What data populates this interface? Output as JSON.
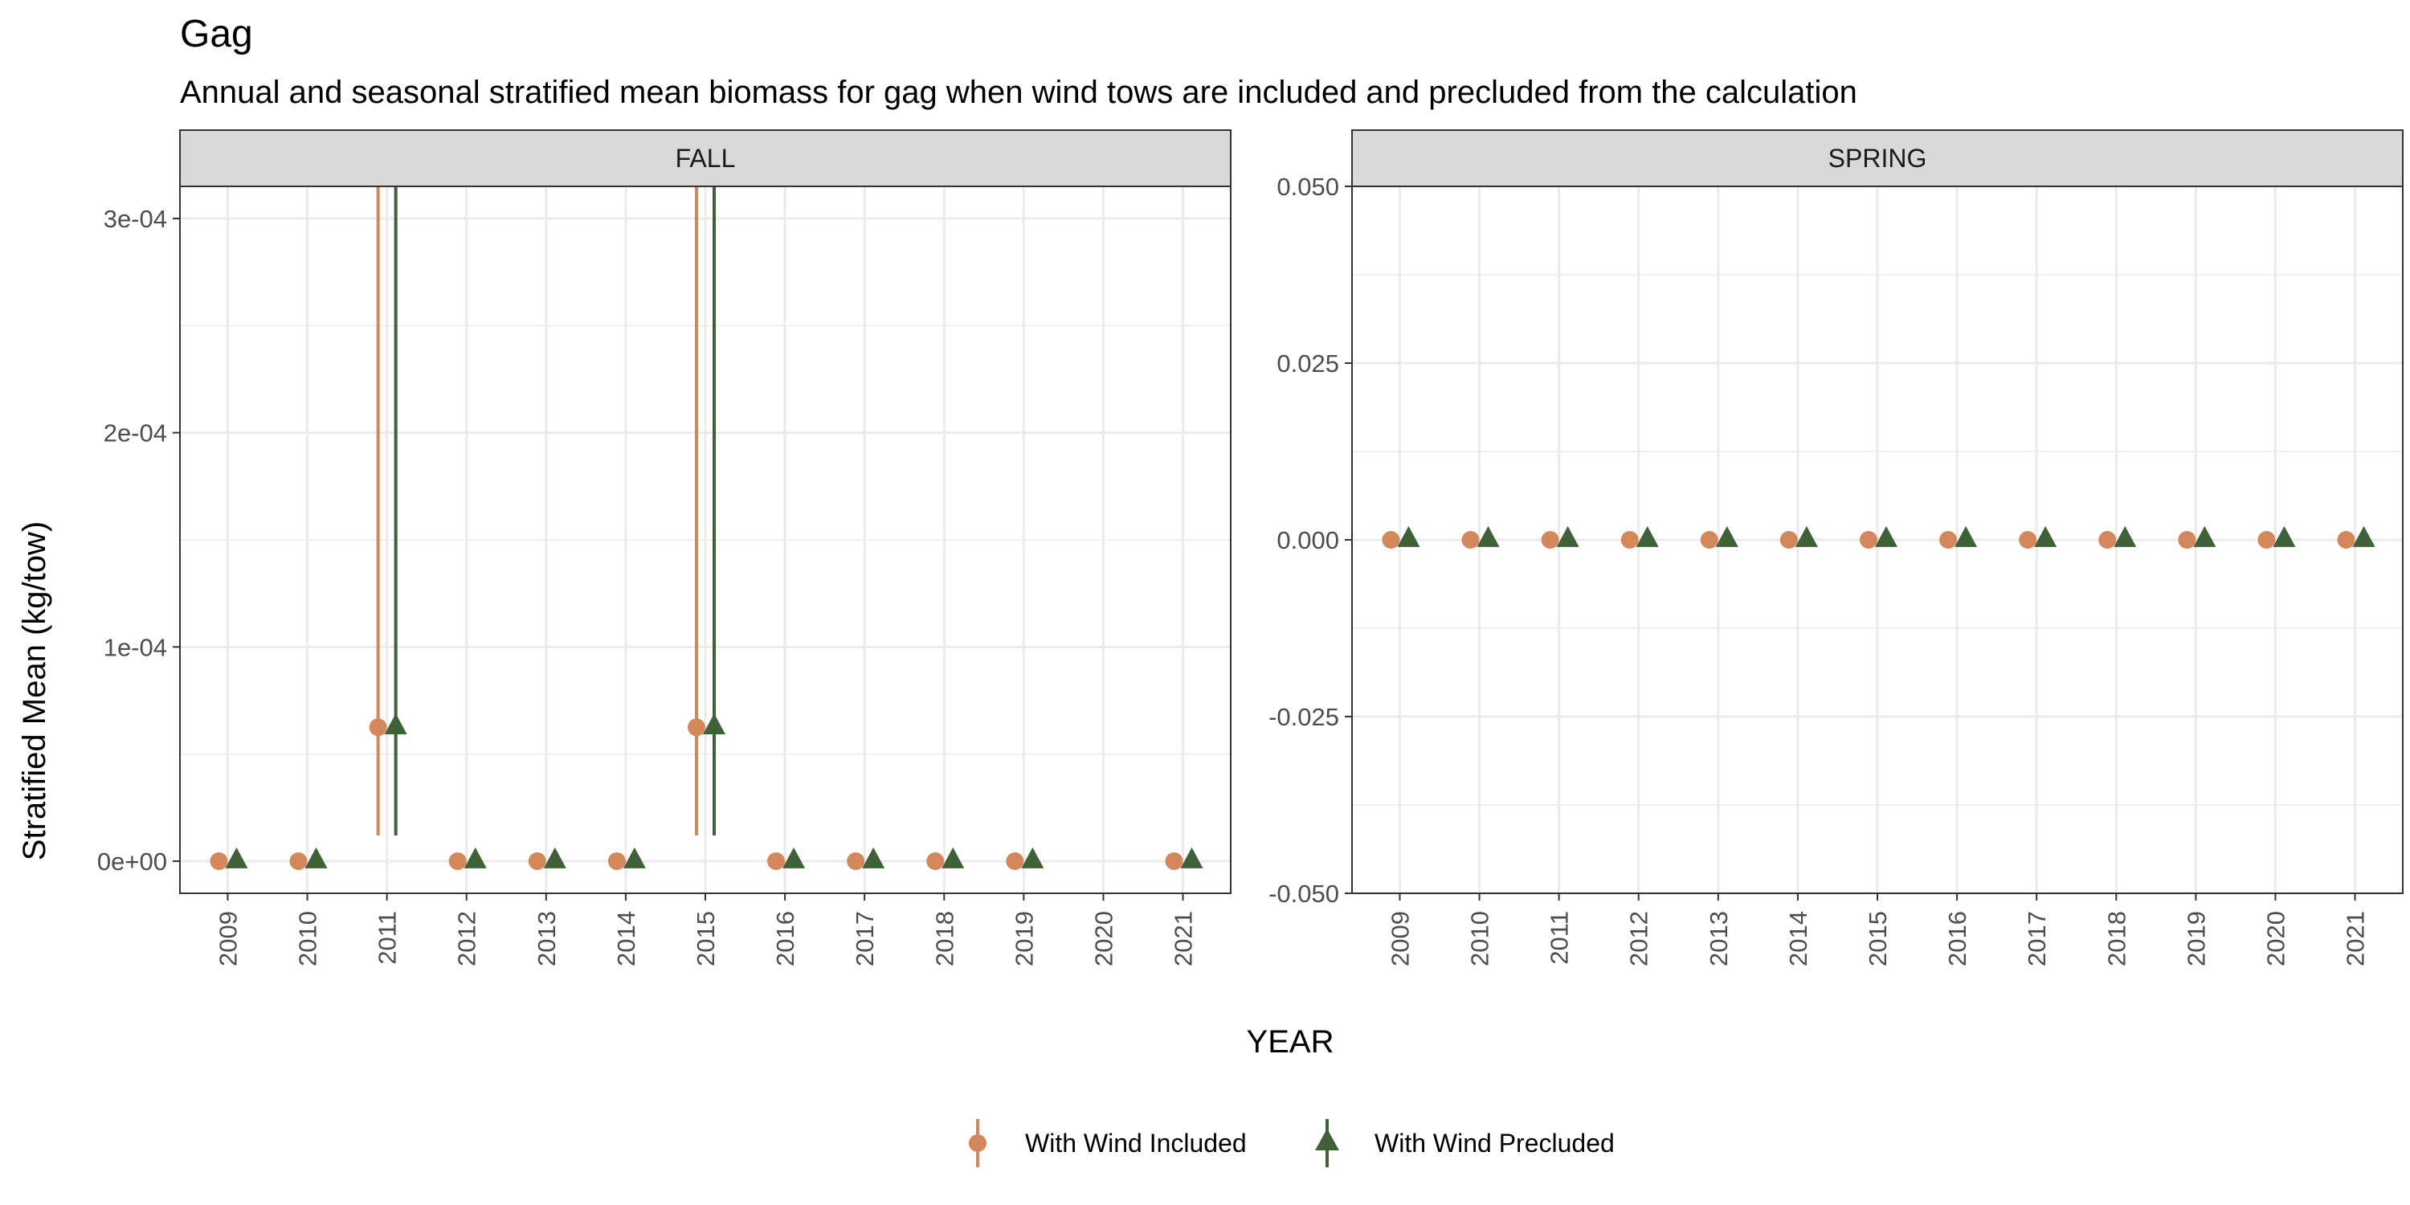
{
  "title": "Gag",
  "subtitle": "Annual and seasonal stratified mean biomass for gag when wind tows are included and precluded from the calculation",
  "colors": {
    "included": "#D4875A",
    "precluded": "#3E6138",
    "grid": "#EBEBEB",
    "strip_fill": "#D9D9D9",
    "panel_border": "#333333"
  },
  "chart_data": {
    "type": "scatter",
    "xlabel": "YEAR",
    "ylabel": "Stratified Mean (kg/tow)",
    "x": [
      "2009",
      "2010",
      "2011",
      "2012",
      "2013",
      "2014",
      "2015",
      "2016",
      "2017",
      "2018",
      "2019",
      "2020",
      "2021"
    ],
    "legend": {
      "position": "bottom",
      "entries": [
        "With Wind Included",
        "With Wind Precluded"
      ]
    },
    "grid": true,
    "panels": [
      {
        "name": "FALL",
        "ylim": [
          -1.5e-05,
          0.000315
        ],
        "y_ticks": [
          0,
          0.0001,
          0.0002,
          0.0003
        ],
        "y_tick_labels": [
          "0e+00",
          "1e-04",
          "2e-04",
          "3e-04"
        ],
        "series": [
          {
            "name": "With Wind Included",
            "marker": "circle",
            "points": [
              {
                "x": "2009",
                "y": 0
              },
              {
                "x": "2010",
                "y": 0
              },
              {
                "x": "2011",
                "y": 6.25e-05,
                "ymin": 1.2e-05,
                "ymax": 0.000317
              },
              {
                "x": "2012",
                "y": 0
              },
              {
                "x": "2013",
                "y": 0
              },
              {
                "x": "2014",
                "y": 0
              },
              {
                "x": "2015",
                "y": 6.25e-05,
                "ymin": 1.2e-05,
                "ymax": 0.000315
              },
              {
                "x": "2016",
                "y": 0
              },
              {
                "x": "2017",
                "y": 0
              },
              {
                "x": "2018",
                "y": 0
              },
              {
                "x": "2019",
                "y": 0
              },
              {
                "x": "2021",
                "y": 0
              }
            ]
          },
          {
            "name": "With Wind Precluded",
            "marker": "triangle",
            "points": [
              {
                "x": "2009",
                "y": 0
              },
              {
                "x": "2010",
                "y": 0
              },
              {
                "x": "2011",
                "y": 6.25e-05,
                "ymin": 1.2e-05,
                "ymax": 0.000317
              },
              {
                "x": "2012",
                "y": 0
              },
              {
                "x": "2013",
                "y": 0
              },
              {
                "x": "2014",
                "y": 0
              },
              {
                "x": "2015",
                "y": 6.25e-05,
                "ymin": 1.2e-05,
                "ymax": 0.000315
              },
              {
                "x": "2016",
                "y": 0
              },
              {
                "x": "2017",
                "y": 0
              },
              {
                "x": "2018",
                "y": 0
              },
              {
                "x": "2019",
                "y": 0
              },
              {
                "x": "2021",
                "y": 0
              }
            ]
          }
        ]
      },
      {
        "name": "SPRING",
        "ylim": [
          -0.05,
          0.05
        ],
        "y_ticks": [
          -0.05,
          -0.025,
          0,
          0.025,
          0.05
        ],
        "y_tick_labels": [
          "-0.050",
          "-0.025",
          "0.000",
          "0.025",
          "0.050"
        ],
        "series": [
          {
            "name": "With Wind Included",
            "marker": "circle",
            "points": [
              {
                "x": "2009",
                "y": 0
              },
              {
                "x": "2010",
                "y": 0
              },
              {
                "x": "2011",
                "y": 0
              },
              {
                "x": "2012",
                "y": 0
              },
              {
                "x": "2013",
                "y": 0
              },
              {
                "x": "2014",
                "y": 0
              },
              {
                "x": "2015",
                "y": 0
              },
              {
                "x": "2016",
                "y": 0
              },
              {
                "x": "2017",
                "y": 0
              },
              {
                "x": "2018",
                "y": 0
              },
              {
                "x": "2019",
                "y": 0
              },
              {
                "x": "2020",
                "y": 0
              },
              {
                "x": "2021",
                "y": 0
              }
            ]
          },
          {
            "name": "With Wind Precluded",
            "marker": "triangle",
            "points": [
              {
                "x": "2009",
                "y": 0
              },
              {
                "x": "2010",
                "y": 0
              },
              {
                "x": "2011",
                "y": 0
              },
              {
                "x": "2012",
                "y": 0
              },
              {
                "x": "2013",
                "y": 0
              },
              {
                "x": "2014",
                "y": 0
              },
              {
                "x": "2015",
                "y": 0
              },
              {
                "x": "2016",
                "y": 0
              },
              {
                "x": "2017",
                "y": 0
              },
              {
                "x": "2018",
                "y": 0
              },
              {
                "x": "2019",
                "y": 0
              },
              {
                "x": "2020",
                "y": 0
              },
              {
                "x": "2021",
                "y": 0
              }
            ]
          }
        ]
      }
    ]
  }
}
